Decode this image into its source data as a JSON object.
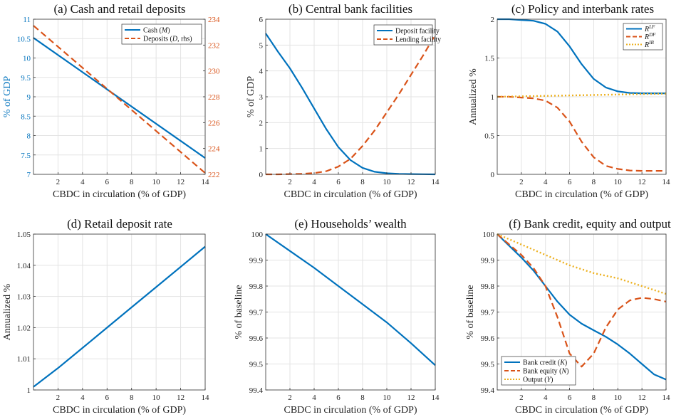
{
  "colors": {
    "blue": "#0072BD",
    "red": "#D95319",
    "yellow": "#EDB120"
  },
  "chart_data": [
    {
      "id": "a",
      "type": "line",
      "title": "(a) Cash and retail deposits",
      "xlabel": "CBDC in circulation (% of GDP)",
      "ylabel": "% of GDP",
      "ylabel_right": "",
      "xlim": [
        0,
        14
      ],
      "ylim": [
        7,
        11
      ],
      "ylim_right": [
        222,
        234
      ],
      "xticks": [
        "2",
        "4",
        "6",
        "8",
        "10",
        "12",
        "14"
      ],
      "yticks": [
        "7",
        "7.5",
        "8",
        "8.5",
        "9",
        "9.5",
        "10",
        "10.5",
        "11"
      ],
      "yticks_right": [
        "222",
        "224",
        "226",
        "228",
        "230",
        "232",
        "234"
      ],
      "grid": true,
      "legend": "top-right",
      "series": [
        {
          "name": "Cash (M)",
          "color": "#0072BD",
          "dash": "solid",
          "axis": "left",
          "x": [
            0,
            14
          ],
          "y": [
            10.52,
            7.42
          ]
        },
        {
          "name": "Deposits (D, rhs)",
          "color": "#D95319",
          "dash": "dashed",
          "axis": "right",
          "x": [
            0,
            14
          ],
          "y": [
            233.5,
            222.1
          ]
        }
      ]
    },
    {
      "id": "b",
      "type": "line",
      "title": "(b) Central bank facilities",
      "xlabel": "CBDC in circulation (% of GDP)",
      "ylabel": "% of GDP",
      "xlim": [
        0,
        14
      ],
      "ylim": [
        0,
        6
      ],
      "xticks": [
        "2",
        "4",
        "6",
        "8",
        "10",
        "12",
        "14"
      ],
      "yticks": [
        "0",
        "1",
        "2",
        "3",
        "4",
        "5",
        "6"
      ],
      "grid": true,
      "legend": "top-right",
      "series": [
        {
          "name": "Deposit facility",
          "color": "#0072BD",
          "dash": "solid",
          "x": [
            0,
            1,
            2,
            3,
            4,
            5,
            6,
            7,
            8,
            9,
            10,
            11,
            12,
            13,
            14
          ],
          "y": [
            5.45,
            4.75,
            4.1,
            3.35,
            2.55,
            1.75,
            1.05,
            0.55,
            0.25,
            0.1,
            0.04,
            0.02,
            0.01,
            0.005,
            0
          ]
        },
        {
          "name": "Lending facility",
          "color": "#D95319",
          "dash": "dashed",
          "x": [
            0,
            1,
            2,
            3,
            4,
            5,
            6,
            7,
            8,
            9,
            10,
            11,
            12,
            13,
            14
          ],
          "y": [
            0,
            0,
            0.01,
            0.02,
            0.05,
            0.12,
            0.3,
            0.6,
            1.1,
            1.7,
            2.4,
            3.1,
            3.85,
            4.6,
            5.4
          ]
        }
      ]
    },
    {
      "id": "c",
      "type": "line",
      "title": "(c) Policy and interbank rates",
      "xlabel": "CBDC in circulation (% of GDP)",
      "ylabel": "Annualized %",
      "xlim": [
        0,
        14
      ],
      "ylim": [
        0,
        2
      ],
      "xticks": [
        "2",
        "4",
        "6",
        "8",
        "10",
        "12",
        "14"
      ],
      "yticks": [
        "0",
        "0.5",
        "1",
        "1.5",
        "2"
      ],
      "grid": true,
      "legend": "top-right",
      "series": [
        {
          "name": "R^{LF}",
          "name_base": "R",
          "name_sup": "LF",
          "color": "#0072BD",
          "dash": "solid",
          "x": [
            0,
            1,
            2,
            3,
            4,
            5,
            6,
            7,
            8,
            9,
            10,
            11,
            12,
            13,
            14
          ],
          "y": [
            2.0,
            2.0,
            1.99,
            1.98,
            1.94,
            1.84,
            1.65,
            1.42,
            1.23,
            1.12,
            1.07,
            1.05,
            1.045,
            1.045,
            1.045
          ]
        },
        {
          "name": "R^{DF}",
          "name_base": "R",
          "name_sup": "DF",
          "color": "#D95319",
          "dash": "dashed",
          "x": [
            0,
            1,
            2,
            3,
            4,
            5,
            6,
            7,
            8,
            9,
            10,
            11,
            12,
            13,
            14
          ],
          "y": [
            1.0,
            1.0,
            0.99,
            0.98,
            0.95,
            0.86,
            0.68,
            0.42,
            0.22,
            0.11,
            0.07,
            0.05,
            0.045,
            0.045,
            0.045
          ]
        },
        {
          "name": "R^{IB}",
          "name_base": "R",
          "name_sup": "IB",
          "color": "#EDB120",
          "dash": "dotted",
          "x": [
            0,
            14
          ],
          "y": [
            1.0,
            1.04
          ]
        }
      ]
    },
    {
      "id": "d",
      "type": "line",
      "title": "(d) Retail deposit rate",
      "xlabel": "CBDC in circulation (% of GDP)",
      "ylabel": "Annualized %",
      "xlim": [
        0,
        14
      ],
      "ylim": [
        1,
        1.05
      ],
      "xticks": [
        "2",
        "4",
        "6",
        "8",
        "10",
        "12",
        "14"
      ],
      "yticks": [
        "1",
        "1.01",
        "1.02",
        "1.03",
        "1.04",
        "1.05"
      ],
      "grid": true,
      "series": [
        {
          "name": "",
          "color": "#0072BD",
          "dash": "solid",
          "x": [
            0,
            2,
            4,
            6,
            8,
            10,
            12,
            14
          ],
          "y": [
            1.001,
            1.007,
            1.0135,
            1.02,
            1.0265,
            1.033,
            1.0395,
            1.046
          ]
        }
      ]
    },
    {
      "id": "e",
      "type": "line",
      "title": "(e) Households’ wealth",
      "xlabel": "CBDC in circulation (% of GDP)",
      "ylabel": "% of baseline",
      "xlim": [
        0,
        14
      ],
      "ylim": [
        99.4,
        100
      ],
      "xticks": [
        "2",
        "4",
        "6",
        "8",
        "10",
        "12",
        "14"
      ],
      "yticks": [
        "99.4",
        "99.5",
        "99.6",
        "99.7",
        "99.8",
        "99.9",
        "100"
      ],
      "grid": true,
      "series": [
        {
          "name": "",
          "color": "#0072BD",
          "dash": "solid",
          "x": [
            0,
            2,
            4,
            6,
            8,
            10,
            12,
            14
          ],
          "y": [
            100.0,
            99.935,
            99.87,
            99.8,
            99.73,
            99.66,
            99.58,
            99.495
          ]
        }
      ]
    },
    {
      "id": "f",
      "type": "line",
      "title": "(f) Bank credit, equity and output",
      "xlabel": "CBDC in circulation (% of GDP)",
      "ylabel": "% of baseline",
      "xlim": [
        0,
        14
      ],
      "ylim": [
        99.4,
        100
      ],
      "xticks": [
        "2",
        "4",
        "6",
        "8",
        "10",
        "12",
        "14"
      ],
      "yticks": [
        "99.4",
        "99.5",
        "99.6",
        "99.7",
        "99.8",
        "99.9",
        "100"
      ],
      "grid": true,
      "legend": "bottom-left",
      "series": [
        {
          "name": "Bank credit (K)",
          "color": "#0072BD",
          "dash": "solid",
          "x": [
            0,
            1,
            2,
            3,
            4,
            5,
            6,
            7,
            8,
            9,
            10,
            11,
            12,
            13,
            14
          ],
          "y": [
            100.0,
            99.955,
            99.91,
            99.86,
            99.8,
            99.74,
            99.69,
            99.655,
            99.63,
            99.605,
            99.575,
            99.54,
            99.5,
            99.46,
            99.44
          ]
        },
        {
          "name": "Bank equity (N)",
          "color": "#D95319",
          "dash": "dashed",
          "x": [
            0,
            1,
            2,
            3,
            4,
            5,
            6,
            7,
            8,
            9,
            10,
            11,
            12,
            13,
            14
          ],
          "y": [
            100.0,
            99.96,
            99.92,
            99.87,
            99.8,
            99.68,
            99.54,
            99.49,
            99.54,
            99.64,
            99.71,
            99.745,
            99.755,
            99.75,
            99.74
          ]
        },
        {
          "name": "Output (Y)",
          "color": "#EDB120",
          "dash": "dotted",
          "x": [
            0,
            2,
            4,
            6,
            8,
            10,
            12,
            14
          ],
          "y": [
            100.0,
            99.96,
            99.92,
            99.88,
            99.85,
            99.83,
            99.8,
            99.77
          ]
        }
      ]
    }
  ]
}
